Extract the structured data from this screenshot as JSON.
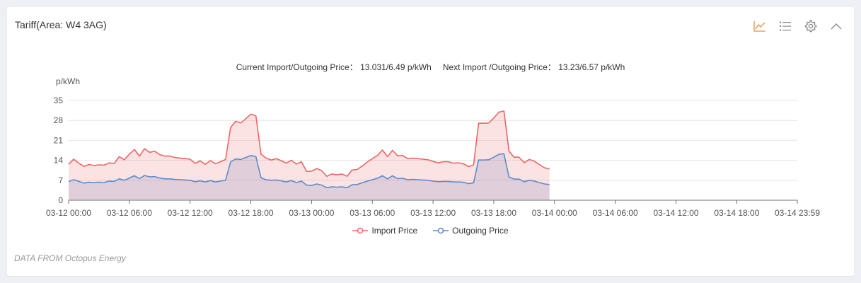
{
  "card": {
    "title": "Tariff(Area: W4 3AG)",
    "current_label": "Current Import/Outgoing Price：",
    "current_value": "13.031/6.49 p/kWh",
    "next_label": "Next Import /Outgoing Price：",
    "next_value": "13.23/6.57 p/kWh",
    "footer": "DATA FROM Octopus Energy"
  },
  "toolbar": {
    "icons": [
      "line-chart-icon",
      "list-icon",
      "gear-icon",
      "chevron-up-icon"
    ],
    "active_color": "#e8913a",
    "idle_color": "#888888"
  },
  "chart_data": {
    "type": "area",
    "ylabel": "p/kWh",
    "ylim": [
      0,
      35
    ],
    "yticks": [
      0,
      7,
      14,
      21,
      28,
      35
    ],
    "xticks": [
      "03-12 00:00",
      "03-12 06:00",
      "03-12 12:00",
      "03-12 18:00",
      "03-13 00:00",
      "03-13 06:00",
      "03-13 12:00",
      "03-13 18:00",
      "03-14 00:00",
      "03-14 06:00",
      "03-14 12:00",
      "03-14 18:00",
      "03-14 23:59"
    ],
    "x_start": "03-12 00:00",
    "x_end": "03-14 23:59",
    "x": [
      "03-12 00:00",
      "03-12 00:30",
      "03-12 01:00",
      "03-12 01:30",
      "03-12 02:00",
      "03-12 02:30",
      "03-12 03:00",
      "03-12 03:30",
      "03-12 04:00",
      "03-12 04:30",
      "03-12 05:00",
      "03-12 05:30",
      "03-12 06:00",
      "03-12 06:30",
      "03-12 07:00",
      "03-12 07:30",
      "03-12 08:00",
      "03-12 08:30",
      "03-12 09:00",
      "03-12 09:30",
      "03-12 10:00",
      "03-12 10:30",
      "03-12 11:00",
      "03-12 11:30",
      "03-12 12:00",
      "03-12 12:30",
      "03-12 13:00",
      "03-12 13:30",
      "03-12 14:00",
      "03-12 14:30",
      "03-12 15:00",
      "03-12 15:30",
      "03-12 16:00",
      "03-12 16:30",
      "03-12 17:00",
      "03-12 17:30",
      "03-12 18:00",
      "03-12 18:30",
      "03-12 19:00",
      "03-12 19:30",
      "03-12 20:00",
      "03-12 20:30",
      "03-12 21:00",
      "03-12 21:30",
      "03-12 22:00",
      "03-12 22:30",
      "03-12 23:00",
      "03-12 23:30",
      "03-13 00:00",
      "03-13 00:30",
      "03-13 01:00",
      "03-13 01:30",
      "03-13 02:00",
      "03-13 02:30",
      "03-13 03:00",
      "03-13 03:30",
      "03-13 04:00",
      "03-13 04:30",
      "03-13 05:00",
      "03-13 05:30",
      "03-13 06:00",
      "03-13 06:30",
      "03-13 07:00",
      "03-13 07:30",
      "03-13 08:00",
      "03-13 08:30",
      "03-13 09:00",
      "03-13 09:30",
      "03-13 10:00",
      "03-13 10:30",
      "03-13 11:00",
      "03-13 11:30",
      "03-13 12:00",
      "03-13 12:30",
      "03-13 13:00",
      "03-13 13:30",
      "03-13 14:00",
      "03-13 14:30",
      "03-13 15:00",
      "03-13 15:30",
      "03-13 16:00",
      "03-13 16:30",
      "03-13 17:00",
      "03-13 17:30",
      "03-13 18:00",
      "03-13 18:30",
      "03-13 19:00",
      "03-13 19:30",
      "03-13 20:00",
      "03-13 20:30",
      "03-13 21:00",
      "03-13 21:30",
      "03-13 22:00",
      "03-13 22:30",
      "03-13 23:00",
      "03-13 23:30"
    ],
    "series": [
      {
        "name": "Import Price",
        "color": "#ee6666",
        "fill": "rgba(238,102,102,0.18)",
        "values": [
          12.6,
          14.4,
          13.0,
          11.9,
          12.5,
          12.2,
          12.4,
          12.3,
          13.1,
          12.9,
          15.3,
          14.2,
          16.2,
          17.8,
          15.5,
          18.1,
          16.8,
          17.2,
          16.0,
          15.5,
          15.5,
          15.0,
          14.8,
          14.6,
          14.4,
          12.9,
          13.8,
          12.6,
          13.9,
          12.8,
          13.5,
          14.3,
          25.5,
          27.7,
          27.1,
          28.6,
          30.2,
          29.6,
          16.2,
          14.8,
          14.1,
          14.6,
          13.9,
          13.0,
          14.0,
          12.7,
          13.5,
          10.1,
          10.2,
          11.1,
          10.4,
          8.4,
          9.2,
          8.9,
          9.2,
          8.4,
          10.6,
          10.8,
          12.0,
          13.4,
          14.6,
          15.7,
          17.6,
          15.3,
          17.5,
          15.6,
          15.7,
          14.6,
          14.8,
          14.6,
          14.4,
          14.2,
          13.6,
          13.1,
          13.5,
          13.5,
          13.0,
          13.1,
          12.8,
          11.8,
          12.4,
          27.0,
          27.0,
          27.1,
          28.9,
          30.9,
          31.3,
          17.2,
          15.1,
          15.1,
          13.2,
          14.3,
          13.7,
          12.5,
          11.4,
          11.0
        ]
      },
      {
        "name": "Outgoing Price",
        "color": "#5b8ccb",
        "fill": "rgba(130,130,190,0.22)",
        "values": [
          6.5,
          7.2,
          6.6,
          6.0,
          6.3,
          6.2,
          6.3,
          6.2,
          6.7,
          6.6,
          7.5,
          7.0,
          7.8,
          8.6,
          7.6,
          8.7,
          8.2,
          8.3,
          7.8,
          7.5,
          7.5,
          7.3,
          7.2,
          7.1,
          7.0,
          6.5,
          6.8,
          6.4,
          6.9,
          6.4,
          6.7,
          7.0,
          13.4,
          14.5,
          14.3,
          15.0,
          15.7,
          15.3,
          7.9,
          7.2,
          7.0,
          7.1,
          6.8,
          6.4,
          6.9,
          6.2,
          6.7,
          5.3,
          5.2,
          5.7,
          5.3,
          4.4,
          4.7,
          4.6,
          4.7,
          4.4,
          5.4,
          5.5,
          6.1,
          6.7,
          7.2,
          7.7,
          8.6,
          7.5,
          8.6,
          7.6,
          7.7,
          7.2,
          7.3,
          7.2,
          7.1,
          7.0,
          6.7,
          6.5,
          6.6,
          6.6,
          6.4,
          6.4,
          6.3,
          5.8,
          6.1,
          14.1,
          14.1,
          14.2,
          15.1,
          16.1,
          16.3,
          8.2,
          7.4,
          7.4,
          6.5,
          7.0,
          6.7,
          6.2,
          5.7,
          5.5
        ]
      }
    ],
    "grid": true,
    "legend": "bottom-center"
  }
}
